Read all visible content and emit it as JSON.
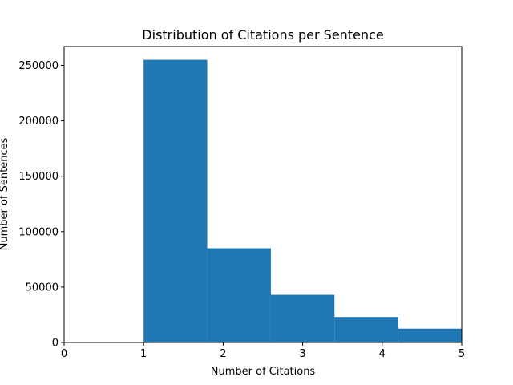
{
  "chart_data": {
    "type": "histogram",
    "title": "Distribution of Citations per Sentence",
    "xlabel": "Number of Citations",
    "ylabel": "Number of Sentences",
    "xlim": [
      0,
      5
    ],
    "ylim": [
      0,
      267000
    ],
    "grid": false,
    "bar_color": "#1f77b4",
    "bins": [
      {
        "x_start": 1.0,
        "x_end": 1.8,
        "value": 255000
      },
      {
        "x_start": 1.8,
        "x_end": 2.6,
        "value": 85000
      },
      {
        "x_start": 2.6,
        "x_end": 3.4,
        "value": 43000
      },
      {
        "x_start": 3.4,
        "x_end": 4.2,
        "value": 23000
      },
      {
        "x_start": 4.2,
        "x_end": 5.0,
        "value": 12500
      }
    ],
    "x_ticks": [
      {
        "value": 0,
        "label": "0"
      },
      {
        "value": 1,
        "label": "1"
      },
      {
        "value": 2,
        "label": "2"
      },
      {
        "value": 3,
        "label": "3"
      },
      {
        "value": 4,
        "label": "4"
      },
      {
        "value": 5,
        "label": "5"
      }
    ],
    "y_ticks": [
      {
        "value": 0,
        "label": "0"
      },
      {
        "value": 50000,
        "label": "50000"
      },
      {
        "value": 100000,
        "label": "100000"
      },
      {
        "value": 150000,
        "label": "150000"
      },
      {
        "value": 200000,
        "label": "200000"
      },
      {
        "value": 250000,
        "label": "250000"
      }
    ]
  }
}
